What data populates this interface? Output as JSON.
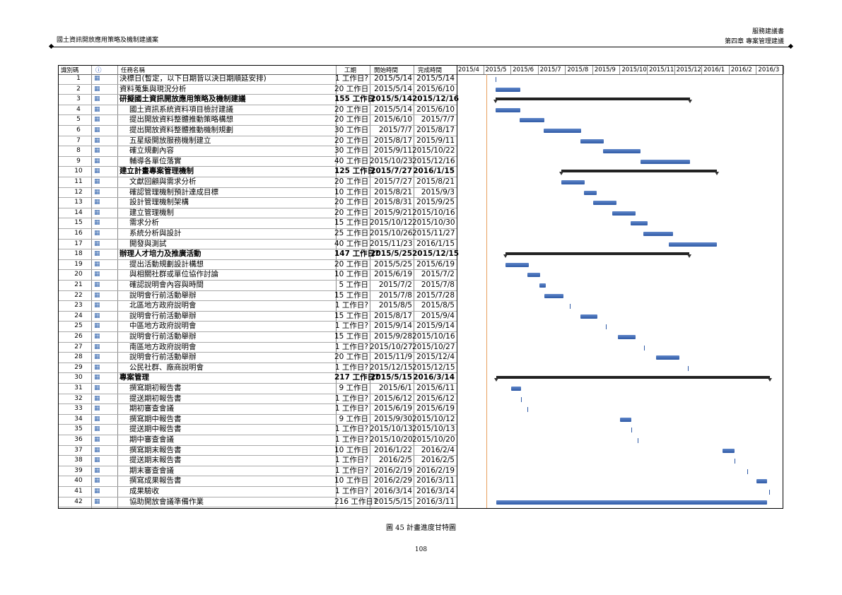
{
  "header": {
    "doc_type": "服務建議書",
    "chapter": "第四章 專案管理建議",
    "left_title": "國土資訊開放應用策略及機制建議案"
  },
  "table": {
    "columns": [
      "識別碼",
      "",
      "任務名稱",
      "工期",
      "開始時間",
      "完成時間"
    ],
    "months": [
      "2015/4",
      "2015/5",
      "2015/6",
      "2015/7",
      "2015/8",
      "2015/9",
      "2015/10",
      "2015/11",
      "2015/12",
      "2016/1",
      "2016/2",
      "2016/3"
    ],
    "rows": [
      {
        "id": "1",
        "name": "決標日(暫定，以下日期皆以決日期順延安排)",
        "dur": "1 工作日?",
        "start": "2015/5/14",
        "end": "2015/5/14",
        "level": 0,
        "type": "ms"
      },
      {
        "id": "2",
        "name": "資料蒐集與現況分析",
        "dur": "20 工作日",
        "start": "2015/5/14",
        "end": "2015/6/10",
        "level": 0,
        "type": "task"
      },
      {
        "id": "3",
        "name": "研擬國土資訊開放應用策略及機制建議",
        "dur": "155 工作日",
        "start": "2015/5/14",
        "end": "2015/12/16",
        "level": 0,
        "type": "sum"
      },
      {
        "id": "4",
        "name": "國土資訊系統資料項目檢討建議",
        "dur": "20 工作日",
        "start": "2015/5/14",
        "end": "2015/6/10",
        "level": 1,
        "type": "task"
      },
      {
        "id": "5",
        "name": "提出開放資料整體推動策略構想",
        "dur": "20 工作日",
        "start": "2015/6/10",
        "end": "2015/7/7",
        "level": 1,
        "type": "task"
      },
      {
        "id": "6",
        "name": "提出開放資料整體推動機制規劃",
        "dur": "30 工作日",
        "start": "2015/7/7",
        "end": "2015/8/17",
        "level": 1,
        "type": "task"
      },
      {
        "id": "7",
        "name": "五星級開放服務機制建立",
        "dur": "20 工作日",
        "start": "2015/8/17",
        "end": "2015/9/11",
        "level": 1,
        "type": "task"
      },
      {
        "id": "8",
        "name": "確立規劃內容",
        "dur": "30 工作日",
        "start": "2015/9/11",
        "end": "2015/10/22",
        "level": 1,
        "type": "task"
      },
      {
        "id": "9",
        "name": "輔導各單位落實",
        "dur": "40 工作日",
        "start": "2015/10/23",
        "end": "2015/12/16",
        "level": 1,
        "type": "task"
      },
      {
        "id": "10",
        "name": "建立計畫專案管理機制",
        "dur": "125 工作日",
        "start": "2015/7/27",
        "end": "2016/1/15",
        "level": 0,
        "type": "sum"
      },
      {
        "id": "11",
        "name": "文獻回顧與需求分析",
        "dur": "20 工作日",
        "start": "2015/7/27",
        "end": "2015/8/21",
        "level": 1,
        "type": "task"
      },
      {
        "id": "12",
        "name": "確認管理機制預計達成目標",
        "dur": "10 工作日",
        "start": "2015/8/21",
        "end": "2015/9/3",
        "level": 1,
        "type": "task"
      },
      {
        "id": "13",
        "name": "設計管理機制架構",
        "dur": "20 工作日",
        "start": "2015/8/31",
        "end": "2015/9/25",
        "level": 1,
        "type": "task"
      },
      {
        "id": "14",
        "name": "建立管理機制",
        "dur": "20 工作日",
        "start": "2015/9/21",
        "end": "2015/10/16",
        "level": 1,
        "type": "task"
      },
      {
        "id": "15",
        "name": "需求分析",
        "dur": "15 工作日",
        "start": "2015/10/12",
        "end": "2015/10/30",
        "level": 1,
        "type": "task"
      },
      {
        "id": "16",
        "name": "系統分析與設計",
        "dur": "25 工作日",
        "start": "2015/10/26",
        "end": "2015/11/27",
        "level": 1,
        "type": "task"
      },
      {
        "id": "17",
        "name": "開發與測試",
        "dur": "40 工作日",
        "start": "2015/11/23",
        "end": "2016/1/15",
        "level": 1,
        "type": "task"
      },
      {
        "id": "18",
        "name": "辦理人才培力及推廣活動",
        "dur": "147 工作日?",
        "start": "2015/5/25",
        "end": "2015/12/15",
        "level": 0,
        "type": "sum"
      },
      {
        "id": "19",
        "name": "提出活動規劃設計構想",
        "dur": "20 工作日",
        "start": "2015/5/25",
        "end": "2015/6/19",
        "level": 1,
        "type": "task"
      },
      {
        "id": "20",
        "name": "與相關社群或單位協作討論",
        "dur": "10 工作日",
        "start": "2015/6/19",
        "end": "2015/7/2",
        "level": 1,
        "type": "task"
      },
      {
        "id": "21",
        "name": "確認說明會內容與時間",
        "dur": "5 工作日",
        "start": "2015/7/2",
        "end": "2015/7/8",
        "level": 1,
        "type": "task"
      },
      {
        "id": "22",
        "name": "說明會行前活動舉辦",
        "dur": "15 工作日",
        "start": "2015/7/8",
        "end": "2015/7/28",
        "level": 1,
        "type": "task"
      },
      {
        "id": "23",
        "name": "北區地方政府說明會",
        "dur": "1 工作日?",
        "start": "2015/8/5",
        "end": "2015/8/5",
        "level": 1,
        "type": "ms"
      },
      {
        "id": "24",
        "name": "說明會行前活動舉辦",
        "dur": "15 工作日",
        "start": "2015/8/17",
        "end": "2015/9/4",
        "level": 1,
        "type": "task"
      },
      {
        "id": "25",
        "name": "中區地方政府說明會",
        "dur": "1 工作日?",
        "start": "2015/9/14",
        "end": "2015/9/14",
        "level": 1,
        "type": "ms"
      },
      {
        "id": "26",
        "name": "說明會行前活動舉辦",
        "dur": "15 工作日",
        "start": "2015/9/28",
        "end": "2015/10/16",
        "level": 1,
        "type": "task"
      },
      {
        "id": "27",
        "name": "南區地方政府說明會",
        "dur": "1 工作日?",
        "start": "2015/10/27",
        "end": "2015/10/27",
        "level": 1,
        "type": "ms"
      },
      {
        "id": "28",
        "name": "說明會行前活動舉辦",
        "dur": "20 工作日",
        "start": "2015/11/9",
        "end": "2015/12/4",
        "level": 1,
        "type": "task"
      },
      {
        "id": "29",
        "name": "公民社群、廠商說明會",
        "dur": "1 工作日?",
        "start": "2015/12/15",
        "end": "2015/12/15",
        "level": 1,
        "type": "ms"
      },
      {
        "id": "30",
        "name": "專案管理",
        "dur": "217 工作日?",
        "start": "2015/5/15",
        "end": "2016/3/14",
        "level": 0,
        "type": "sum"
      },
      {
        "id": "31",
        "name": "撰寫期初報告書",
        "dur": "9 工作日",
        "start": "2015/6/1",
        "end": "2015/6/11",
        "level": 1,
        "type": "task"
      },
      {
        "id": "32",
        "name": "提送期初報告書",
        "dur": "1 工作日?",
        "start": "2015/6/12",
        "end": "2015/6/12",
        "level": 1,
        "type": "ms"
      },
      {
        "id": "33",
        "name": "期初審查會議",
        "dur": "1 工作日?",
        "start": "2015/6/19",
        "end": "2015/6/19",
        "level": 1,
        "type": "ms"
      },
      {
        "id": "34",
        "name": "撰寫期中報告書",
        "dur": "9 工作日",
        "start": "2015/9/30",
        "end": "2015/10/12",
        "level": 1,
        "type": "task"
      },
      {
        "id": "35",
        "name": "提送期中報告書",
        "dur": "1 工作日?",
        "start": "2015/10/13",
        "end": "2015/10/13",
        "level": 1,
        "type": "ms"
      },
      {
        "id": "36",
        "name": "期中審查會議",
        "dur": "1 工作日?",
        "start": "2015/10/20",
        "end": "2015/10/20",
        "level": 1,
        "type": "ms"
      },
      {
        "id": "37",
        "name": "撰寫期末報告書",
        "dur": "10 工作日",
        "start": "2016/1/22",
        "end": "2016/2/4",
        "level": 1,
        "type": "task"
      },
      {
        "id": "38",
        "name": "提送期末報告書",
        "dur": "1 工作日?",
        "start": "2016/2/5",
        "end": "2016/2/5",
        "level": 1,
        "type": "ms"
      },
      {
        "id": "39",
        "name": "期末審查會議",
        "dur": "1 工作日?",
        "start": "2016/2/19",
        "end": "2016/2/19",
        "level": 1,
        "type": "ms"
      },
      {
        "id": "40",
        "name": "撰寫成果報告書",
        "dur": "10 工作日",
        "start": "2016/2/29",
        "end": "2016/3/11",
        "level": 1,
        "type": "task"
      },
      {
        "id": "41",
        "name": "成果驗收",
        "dur": "1 工作日?",
        "start": "2016/3/14",
        "end": "2016/3/14",
        "level": 1,
        "type": "ms"
      },
      {
        "id": "42",
        "name": "協助開放會議準備作業",
        "dur": "216 工作日?",
        "start": "2015/5/15",
        "end": "2016/3/11",
        "level": 1,
        "type": "task"
      }
    ]
  },
  "caption": "圖 45 計畫進度甘特圖",
  "page_number": "108",
  "colors": {
    "bar": "#2f5aa6",
    "summary": "#222222",
    "today_line": "#e8a060"
  }
}
